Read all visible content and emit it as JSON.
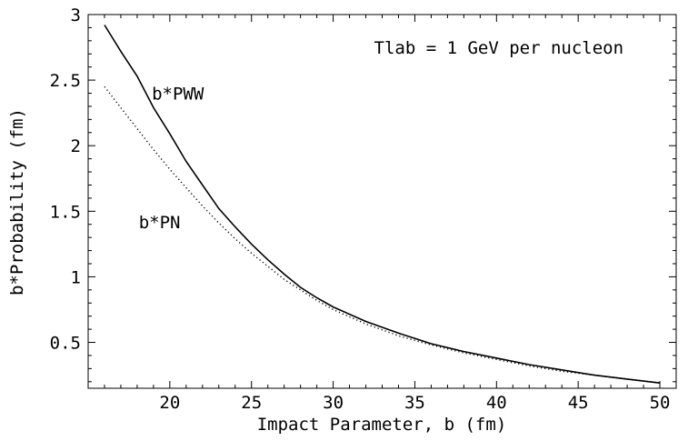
{
  "chart_data": {
    "type": "line",
    "title": "",
    "xlabel": "Impact Parameter, b (fm)",
    "ylabel": "b*Probability (fm)",
    "xlim": [
      15,
      51
    ],
    "ylim": [
      0.15,
      3.0
    ],
    "grid": false,
    "legend": "none",
    "x_ticks": [
      20,
      25,
      30,
      35,
      40,
      45,
      50
    ],
    "x_tick_labels": [
      "20",
      "25",
      "30",
      "35",
      "40",
      "45",
      "50"
    ],
    "y_ticks": [
      0.5,
      1.0,
      1.5,
      2.0,
      2.5,
      3.0
    ],
    "y_tick_labels": [
      "0.5",
      "1",
      "1.5",
      "2",
      "2.5",
      "3"
    ],
    "annotations": [
      {
        "text": "Tlab = 1 GeV per nucleon",
        "x": 32.5,
        "y": 2.75
      },
      {
        "text": "b*PWW",
        "x": 18.9,
        "y": 2.4
      },
      {
        "text": "b*PN",
        "x": 18.1,
        "y": 1.42
      }
    ],
    "series": [
      {
        "name": "b*PWW",
        "style": "solid",
        "color": "#000000",
        "x": [
          16,
          17,
          18,
          19,
          20,
          21,
          22,
          23,
          24,
          25,
          26,
          27,
          28,
          29,
          30,
          32,
          34,
          36,
          38,
          40,
          42,
          44,
          46,
          48,
          50
        ],
        "y": [
          2.92,
          2.72,
          2.53,
          2.29,
          2.09,
          1.88,
          1.7,
          1.52,
          1.38,
          1.25,
          1.13,
          1.02,
          0.92,
          0.84,
          0.77,
          0.66,
          0.57,
          0.49,
          0.43,
          0.38,
          0.33,
          0.29,
          0.25,
          0.22,
          0.19
        ]
      },
      {
        "name": "b*PN",
        "style": "dotted",
        "color": "#000000",
        "x": [
          16,
          17,
          18,
          19,
          20,
          21,
          22,
          23,
          24,
          25,
          26,
          27,
          28,
          29,
          30,
          32,
          34,
          36,
          38,
          40,
          42,
          44,
          46,
          48,
          50
        ],
        "y": [
          2.45,
          2.29,
          2.13,
          1.97,
          1.82,
          1.68,
          1.54,
          1.41,
          1.29,
          1.18,
          1.08,
          0.98,
          0.9,
          0.82,
          0.75,
          0.64,
          0.55,
          0.48,
          0.42,
          0.37,
          0.32,
          0.28,
          0.25,
          0.22,
          0.19
        ]
      }
    ]
  }
}
